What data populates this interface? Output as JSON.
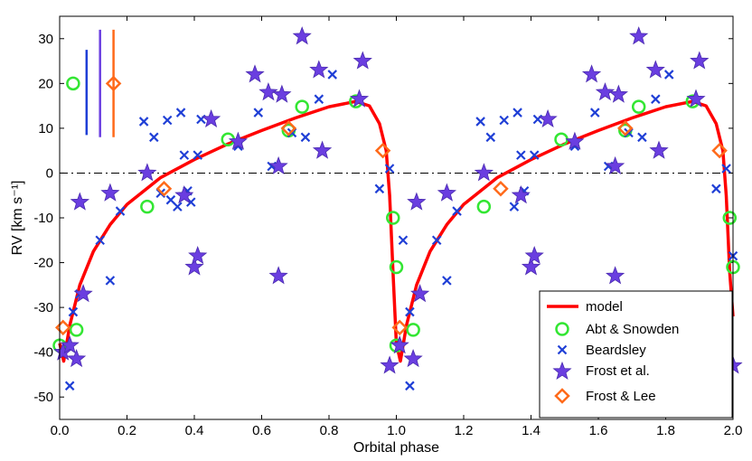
{
  "chart_data": {
    "type": "scatter",
    "title": "",
    "xlabel": "Orbital phase",
    "ylabel": "RV [km s⁻¹]",
    "xlim": [
      0.0,
      2.0
    ],
    "ylim": [
      -55,
      35
    ],
    "x_ticks": [
      "0.0",
      "0.2",
      "0.4",
      "0.6",
      "0.8",
      "1.0",
      "1.2",
      "1.4",
      "1.6",
      "1.8",
      "2.0"
    ],
    "y_ticks": [
      "30",
      "20",
      "10",
      "0",
      "-10",
      "-20",
      "-30",
      "-40",
      "-50"
    ],
    "zero_line": 0,
    "legend_position": "bottom-right",
    "legend": [
      "model",
      "Abt & Snowden",
      "Beardsley",
      "Frost et al.",
      "Frost & Lee"
    ],
    "colors": {
      "model": "#ff0000",
      "abt": "#33e633",
      "beardsley": "#1f3fd6",
      "frost_etal": "#6a3ee0",
      "frost_lee": "#ff6a1a"
    },
    "error_bars": [
      {
        "series": "Beardsley",
        "x": 0.08,
        "y_center": 20,
        "y_low": 8.5,
        "y_high": 27.5
      },
      {
        "series": "Frost et al.",
        "x": 0.12,
        "y_center": 20,
        "y_low": 8,
        "y_high": 32
      },
      {
        "series": "Frost & Lee",
        "x": 0.16,
        "y_center": 20,
        "y_low": 8,
        "y_high": 32
      }
    ],
    "model_curve": [
      [
        0.0,
        -38.0
      ],
      [
        0.012,
        -42.0
      ],
      [
        0.03,
        -34.0
      ],
      [
        0.06,
        -25.0
      ],
      [
        0.1,
        -17.5
      ],
      [
        0.15,
        -11.5
      ],
      [
        0.2,
        -7.0
      ],
      [
        0.3,
        -1.0
      ],
      [
        0.4,
        3.0
      ],
      [
        0.5,
        6.5
      ],
      [
        0.6,
        9.5
      ],
      [
        0.7,
        12.3
      ],
      [
        0.8,
        14.8
      ],
      [
        0.88,
        16.0
      ],
      [
        0.92,
        15.0
      ],
      [
        0.95,
        11.0
      ],
      [
        0.97,
        5.0
      ],
      [
        0.98,
        -5.0
      ],
      [
        0.99,
        -22.0
      ],
      [
        1.0,
        -38.0
      ],
      [
        1.012,
        -42.0
      ],
      [
        1.03,
        -34.0
      ],
      [
        1.06,
        -25.0
      ],
      [
        1.1,
        -17.5
      ],
      [
        1.15,
        -11.5
      ],
      [
        1.2,
        -7.0
      ],
      [
        1.3,
        -1.0
      ],
      [
        1.4,
        3.0
      ],
      [
        1.5,
        6.5
      ],
      [
        1.6,
        9.5
      ],
      [
        1.7,
        12.3
      ],
      [
        1.8,
        14.8
      ],
      [
        1.88,
        16.0
      ],
      [
        1.92,
        15.0
      ],
      [
        1.95,
        11.0
      ],
      [
        1.97,
        5.0
      ],
      [
        1.98,
        -5.0
      ],
      [
        1.99,
        -22.0
      ],
      [
        2.0,
        -32.0
      ]
    ],
    "series": [
      {
        "name": "Abt & Snowden",
        "marker": "circle",
        "points": [
          [
            0.0,
            -38.5
          ],
          [
            0.04,
            20.0
          ],
          [
            0.05,
            -35.0
          ],
          [
            0.26,
            -7.5
          ],
          [
            0.5,
            7.5
          ],
          [
            0.68,
            9.5
          ],
          [
            0.72,
            14.8
          ],
          [
            0.88,
            16.0
          ],
          [
            0.99,
            -10.0
          ],
          [
            1.0,
            -21.0
          ],
          [
            1.0,
            -38.5
          ],
          [
            1.05,
            -35.0
          ],
          [
            1.26,
            -7.5
          ],
          [
            1.49,
            7.5
          ],
          [
            1.68,
            9.5
          ],
          [
            1.72,
            14.8
          ],
          [
            1.88,
            16.0
          ],
          [
            1.99,
            -10.0
          ],
          [
            2.0,
            -21.0
          ]
        ]
      },
      {
        "name": "Beardsley",
        "marker": "x",
        "points": [
          [
            0.03,
            -47.5
          ],
          [
            0.04,
            -31.0
          ],
          [
            0.06,
            -27.0
          ],
          [
            0.12,
            -15.0
          ],
          [
            0.15,
            -24.0
          ],
          [
            0.18,
            -8.5
          ],
          [
            0.25,
            11.5
          ],
          [
            0.28,
            8.0
          ],
          [
            0.3,
            -4.5
          ],
          [
            0.32,
            11.8
          ],
          [
            0.33,
            -6.0
          ],
          [
            0.35,
            -7.5
          ],
          [
            0.36,
            13.5
          ],
          [
            0.37,
            4.0
          ],
          [
            0.38,
            -4.0
          ],
          [
            0.39,
            -6.5
          ],
          [
            0.41,
            4.0
          ],
          [
            0.42,
            12.0
          ],
          [
            0.53,
            6.0
          ],
          [
            0.59,
            13.5
          ],
          [
            0.63,
            1.5
          ],
          [
            0.69,
            9.0
          ],
          [
            0.73,
            8.0
          ],
          [
            0.77,
            16.5
          ],
          [
            0.81,
            22.0
          ],
          [
            0.95,
            -3.5
          ],
          [
            0.98,
            1.0
          ],
          [
            1.02,
            -15.0
          ],
          [
            1.04,
            -47.5
          ],
          [
            1.04,
            -31.0
          ],
          [
            1.12,
            -15.0
          ],
          [
            1.15,
            -24.0
          ],
          [
            1.18,
            -8.5
          ],
          [
            1.25,
            11.5
          ],
          [
            1.28,
            8.0
          ],
          [
            1.32,
            11.8
          ],
          [
            1.35,
            -7.5
          ],
          [
            1.36,
            13.5
          ],
          [
            1.37,
            4.0
          ],
          [
            1.38,
            -4.0
          ],
          [
            1.41,
            4.0
          ],
          [
            1.42,
            12.0
          ],
          [
            1.53,
            6.0
          ],
          [
            1.59,
            13.5
          ],
          [
            1.63,
            1.5
          ],
          [
            1.69,
            9.0
          ],
          [
            1.73,
            8.0
          ],
          [
            1.77,
            16.5
          ],
          [
            1.81,
            22.0
          ],
          [
            1.95,
            -3.5
          ],
          [
            1.98,
            1.0
          ],
          [
            2.0,
            -18.5
          ]
        ]
      },
      {
        "name": "Frost et al.",
        "marker": "star",
        "points": [
          [
            0.01,
            -40.0
          ],
          [
            0.03,
            -38.5
          ],
          [
            0.05,
            -41.5
          ],
          [
            0.06,
            -6.5
          ],
          [
            0.07,
            -27.0
          ],
          [
            0.15,
            -4.5
          ],
          [
            0.26,
            0.0
          ],
          [
            0.37,
            -5.0
          ],
          [
            0.4,
            -21.0
          ],
          [
            0.41,
            -18.5
          ],
          [
            0.45,
            12.0
          ],
          [
            0.53,
            7.0
          ],
          [
            0.58,
            22.0
          ],
          [
            0.62,
            18.0
          ],
          [
            0.65,
            1.5
          ],
          [
            0.65,
            -23.0
          ],
          [
            0.66,
            17.5
          ],
          [
            0.72,
            30.5
          ],
          [
            0.77,
            23.0
          ],
          [
            0.78,
            5.0
          ],
          [
            0.9,
            25.0
          ],
          [
            0.89,
            16.5
          ],
          [
            0.98,
            -43.0
          ],
          [
            1.01,
            -38.5
          ],
          [
            1.05,
            -41.5
          ],
          [
            1.06,
            -6.5
          ],
          [
            1.07,
            -27.0
          ],
          [
            1.15,
            -4.5
          ],
          [
            1.26,
            0.0
          ],
          [
            1.37,
            -5.0
          ],
          [
            1.4,
            -21.0
          ],
          [
            1.41,
            -18.5
          ],
          [
            1.45,
            12.0
          ],
          [
            1.53,
            7.0
          ],
          [
            1.58,
            22.0
          ],
          [
            1.62,
            18.0
          ],
          [
            1.65,
            1.5
          ],
          [
            1.65,
            -23.0
          ],
          [
            1.66,
            17.5
          ],
          [
            1.72,
            30.5
          ],
          [
            1.77,
            23.0
          ],
          [
            1.78,
            5.0
          ],
          [
            1.9,
            25.0
          ],
          [
            1.89,
            16.5
          ],
          [
            2.0,
            -43.0
          ]
        ]
      },
      {
        "name": "Frost & Lee",
        "marker": "diamond",
        "points": [
          [
            0.01,
            -34.5
          ],
          [
            0.16,
            20.0
          ],
          [
            0.31,
            -3.5
          ],
          [
            0.68,
            10.0
          ],
          [
            0.96,
            5.0
          ],
          [
            1.01,
            -34.5
          ],
          [
            1.31,
            -3.5
          ],
          [
            1.68,
            10.0
          ],
          [
            1.96,
            5.0
          ]
        ]
      }
    ]
  }
}
